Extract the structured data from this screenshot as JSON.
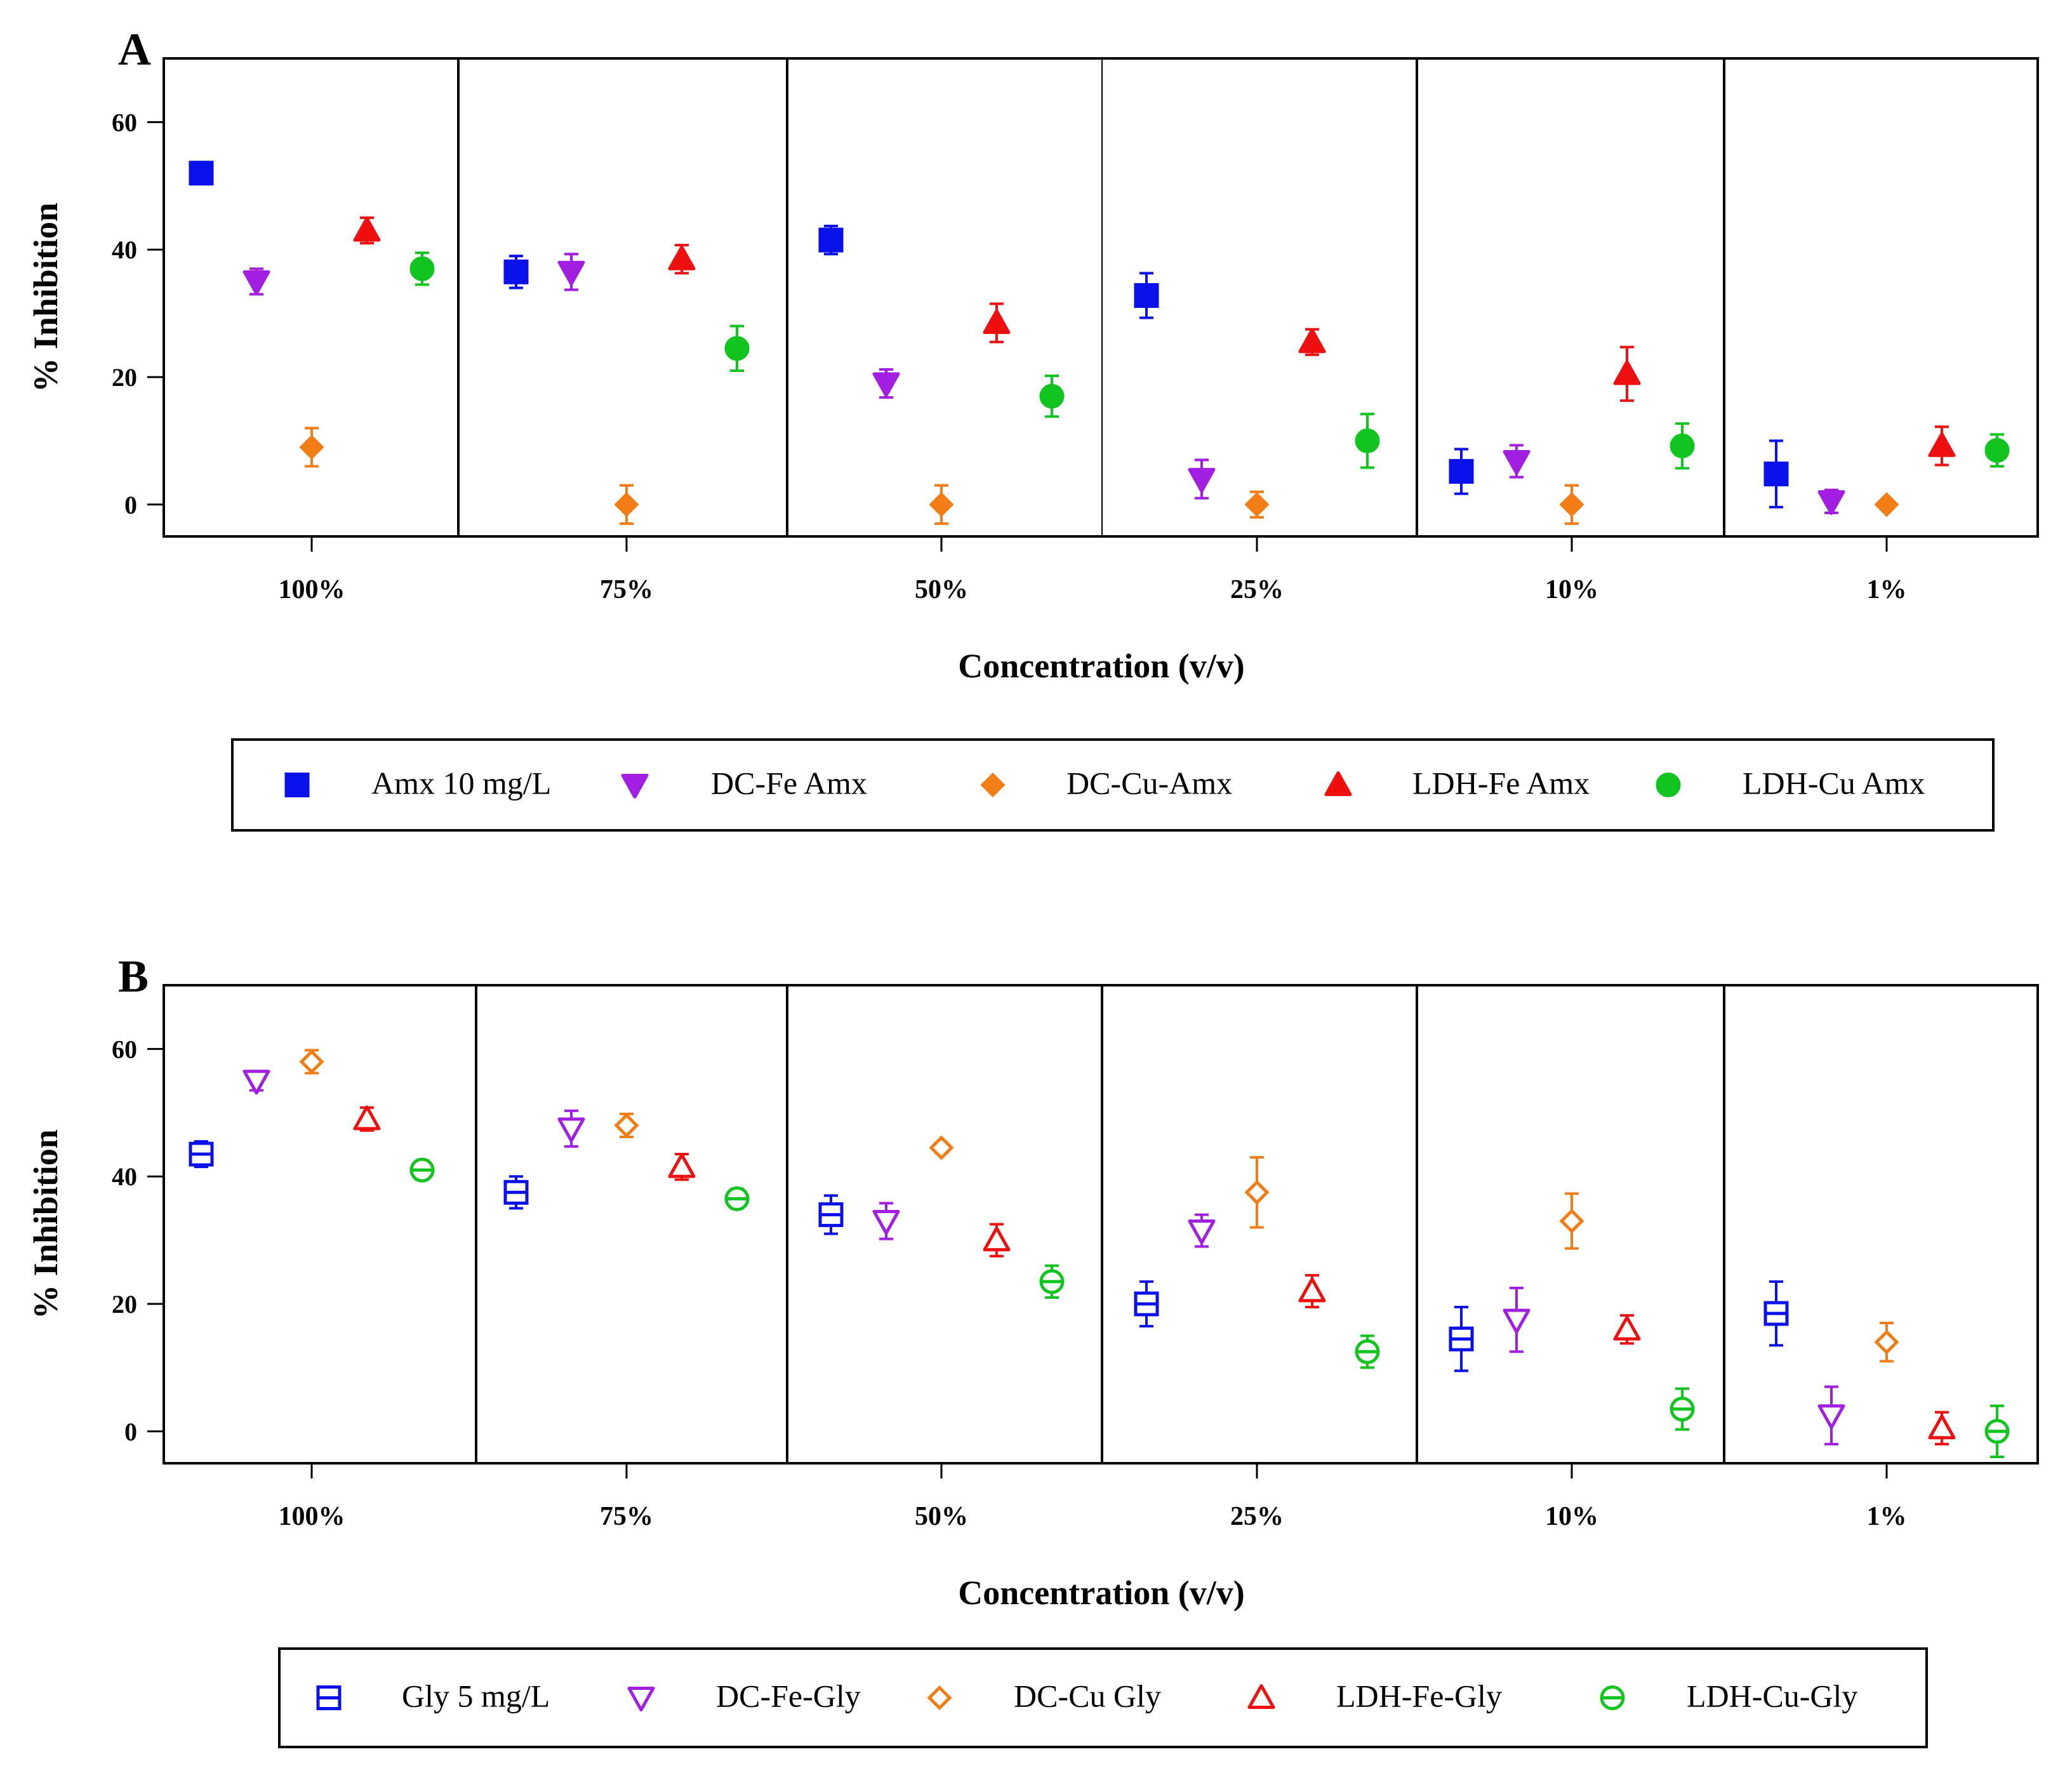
{
  "chart_data": [
    {
      "type": "scatter",
      "panel_label": "A",
      "xlabel": "Concentration (v/v)",
      "ylabel": "% Inhibition",
      "ylim": [
        -5,
        70
      ],
      "yticks": [
        0,
        20,
        40,
        60
      ],
      "categories": [
        "100%",
        "75%",
        "50%",
        "25%",
        "10%",
        "1%"
      ],
      "legend_position": "below",
      "series": [
        {
          "name": "Amx 10 mg/L",
          "marker": "square",
          "filled": true,
          "color": "#0a10e8",
          "values": [
            52,
            36.5,
            41.5,
            32.8,
            5.2,
            4.8
          ],
          "errors": [
            0.8,
            2.5,
            2.2,
            3.5,
            3.5,
            5.2
          ]
        },
        {
          "name": "DC-Fe Amx",
          "marker": "triangle-down",
          "filled": true,
          "color": "#a21ee0",
          "values": [
            35,
            36.5,
            19,
            4,
            6.8,
            0.5
          ],
          "errors": [
            2,
            2.8,
            2.2,
            3,
            2.5,
            1.8
          ]
        },
        {
          "name": "DC-Cu-Amx",
          "marker": "diamond",
          "filled": true,
          "color": "#f27c16",
          "values": [
            9,
            0,
            0,
            0,
            0,
            0
          ],
          "errors": [
            3,
            3,
            3,
            2,
            3,
            0.5
          ]
        },
        {
          "name": "LDH-Fe Amx",
          "marker": "triangle-up",
          "filled": true,
          "color": "#ee1010",
          "values": [
            43,
            38.5,
            28.5,
            25.5,
            20.5,
            9.2
          ],
          "errors": [
            2,
            2.2,
            3,
            2,
            4.2,
            3
          ]
        },
        {
          "name": "LDH-Cu Amx",
          "marker": "circle",
          "filled": true,
          "color": "#12c41f",
          "values": [
            37,
            24.5,
            17,
            10,
            9.2,
            8.5
          ],
          "errors": [
            2.5,
            3.5,
            3.2,
            4.2,
            3.5,
            2.5
          ]
        }
      ]
    },
    {
      "type": "scatter",
      "panel_label": "B",
      "xlabel": "Concentration (v/v)",
      "ylabel": "% Inhibition",
      "ylim": [
        -5,
        70
      ],
      "yticks": [
        0,
        20,
        40,
        60
      ],
      "categories": [
        "100%",
        "75%",
        "50%",
        "25%",
        "10%",
        "1%"
      ],
      "legend_position": "below",
      "series": [
        {
          "name": "Gly 5 mg/L",
          "marker": "square",
          "filled": false,
          "color": "#0a10e8",
          "values": [
            43.5,
            37.5,
            34,
            20,
            14.5,
            18.5
          ],
          "errors": [
            2,
            2.5,
            3,
            3.5,
            5,
            5
          ]
        },
        {
          "name": "DC-Fe-Gly",
          "marker": "triangle-down",
          "filled": false,
          "color": "#a21ee0",
          "values": [
            55,
            47.5,
            33,
            31.5,
            17.5,
            2.5
          ],
          "errors": [
            1.5,
            2.8,
            2.8,
            2.5,
            5,
            4.5
          ]
        },
        {
          "name": "DC-Cu Gly",
          "marker": "diamond",
          "filled": false,
          "color": "#f27c16",
          "values": [
            58,
            48,
            44.5,
            37.5,
            33,
            14
          ],
          "errors": [
            1.8,
            1.8,
            0.8,
            5.5,
            4.3,
            3
          ]
        },
        {
          "name": "LDH-Fe-Gly",
          "marker": "triangle-up",
          "filled": false,
          "color": "#ee1010",
          "values": [
            49,
            41.5,
            30,
            22,
            16,
            0.5
          ],
          "errors": [
            1.8,
            2,
            2.5,
            2.5,
            2.2,
            2.5
          ]
        },
        {
          "name": "LDH-Cu-Gly",
          "marker": "circle",
          "filled": false,
          "color": "#12c41f",
          "values": [
            41,
            36.5,
            23.5,
            12.5,
            3.5,
            0
          ],
          "errors": [
            1.5,
            1.5,
            2.5,
            2.5,
            3.2,
            4
          ]
        }
      ]
    }
  ]
}
